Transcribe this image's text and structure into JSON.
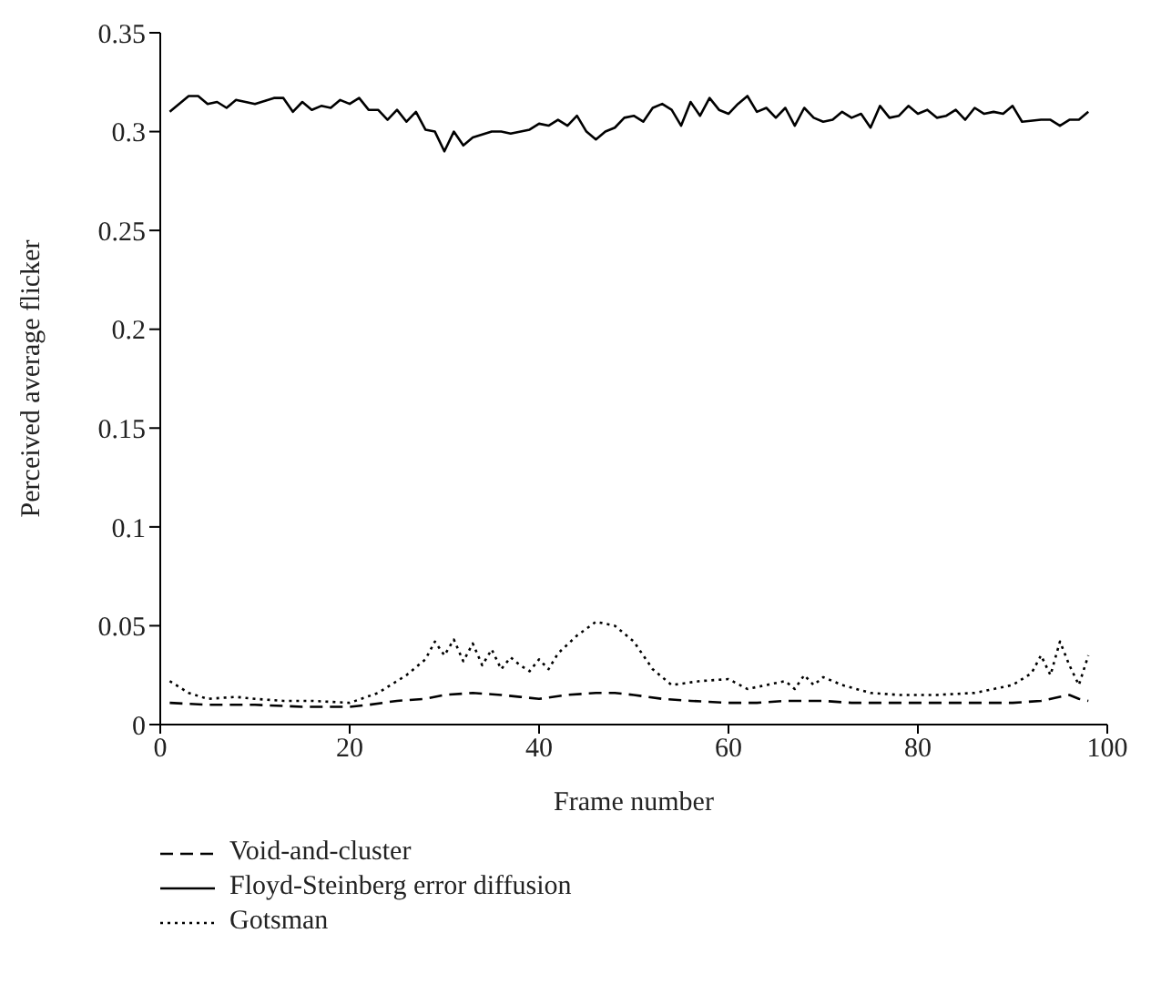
{
  "chart_data": {
    "type": "line",
    "xlabel": "Frame number",
    "ylabel": "Perceived average flicker",
    "xlim": [
      0,
      100
    ],
    "xticks": [
      0,
      20,
      40,
      60,
      80,
      100
    ],
    "ylim": [
      0,
      0.35
    ],
    "yticks": [
      0,
      0.05,
      0.1,
      0.15,
      0.2,
      0.25,
      0.3,
      0.35
    ],
    "legend": "bottom left",
    "marker": "none",
    "series": [
      {
        "name": "Void-and-cluster",
        "color": "#000000",
        "line_style": "dashed",
        "x": [
          1,
          5,
          10,
          15,
          18,
          20,
          22,
          25,
          28,
          30,
          33,
          36,
          38,
          40,
          43,
          46,
          48,
          50,
          53,
          56,
          60,
          63,
          66,
          70,
          73,
          76,
          80,
          85,
          90,
          93,
          95,
          96,
          97,
          98
        ],
        "values": [
          0.011,
          0.01,
          0.01,
          0.009,
          0.009,
          0.009,
          0.01,
          0.012,
          0.013,
          0.015,
          0.016,
          0.015,
          0.014,
          0.013,
          0.015,
          0.016,
          0.016,
          0.015,
          0.013,
          0.012,
          0.011,
          0.011,
          0.012,
          0.012,
          0.011,
          0.011,
          0.011,
          0.011,
          0.011,
          0.012,
          0.014,
          0.015,
          0.013,
          0.012
        ]
      },
      {
        "name": "Floyd-Steinberg error diffusion",
        "color": "#000000",
        "line_style": "solid",
        "x": [
          1,
          3,
          4,
          5,
          6,
          7,
          8,
          10,
          12,
          13,
          14,
          15,
          16,
          17,
          18,
          19,
          20,
          21,
          22,
          23,
          24,
          25,
          26,
          27,
          28,
          29,
          30,
          31,
          32,
          33,
          35,
          36,
          37,
          39,
          40,
          41,
          42,
          43,
          44,
          45,
          46,
          47,
          48,
          49,
          50,
          51,
          52,
          53,
          54,
          55,
          56,
          57,
          58,
          59,
          60,
          61,
          62,
          63,
          64,
          65,
          66,
          67,
          68,
          69,
          70,
          71,
          72,
          73,
          74,
          75,
          76,
          77,
          78,
          79,
          80,
          81,
          82,
          83,
          84,
          85,
          86,
          87,
          88,
          89,
          90,
          91,
          93,
          94,
          95,
          96,
          97,
          98
        ],
        "values": [
          0.31,
          0.318,
          0.318,
          0.314,
          0.315,
          0.312,
          0.316,
          0.314,
          0.317,
          0.317,
          0.31,
          0.315,
          0.311,
          0.313,
          0.312,
          0.316,
          0.314,
          0.317,
          0.311,
          0.311,
          0.306,
          0.311,
          0.305,
          0.31,
          0.301,
          0.3,
          0.29,
          0.3,
          0.293,
          0.297,
          0.3,
          0.3,
          0.299,
          0.301,
          0.304,
          0.303,
          0.306,
          0.303,
          0.308,
          0.3,
          0.296,
          0.3,
          0.302,
          0.307,
          0.308,
          0.305,
          0.312,
          0.314,
          0.311,
          0.303,
          0.315,
          0.308,
          0.317,
          0.311,
          0.309,
          0.314,
          0.318,
          0.31,
          0.312,
          0.307,
          0.312,
          0.303,
          0.312,
          0.307,
          0.305,
          0.306,
          0.31,
          0.307,
          0.309,
          0.302,
          0.313,
          0.307,
          0.308,
          0.313,
          0.309,
          0.311,
          0.307,
          0.308,
          0.311,
          0.306,
          0.312,
          0.309,
          0.31,
          0.309,
          0.313,
          0.305,
          0.306,
          0.306,
          0.303,
          0.306,
          0.306,
          0.31
        ]
      },
      {
        "name": "Gotsman",
        "color": "#000000",
        "line_style": "dotted",
        "x": [
          1,
          3,
          5,
          8,
          10,
          13,
          16,
          20,
          23,
          26,
          28,
          29,
          30,
          31,
          32,
          33,
          34,
          35,
          36,
          37,
          38,
          39,
          40,
          41,
          42,
          44,
          46,
          48,
          50,
          52,
          54,
          57,
          60,
          62,
          64,
          66,
          67,
          68,
          69,
          70,
          72,
          75,
          78,
          82,
          86,
          90,
          92,
          93,
          94,
          95,
          96,
          97,
          98
        ],
        "values": [
          0.022,
          0.016,
          0.013,
          0.014,
          0.013,
          0.012,
          0.012,
          0.011,
          0.016,
          0.025,
          0.033,
          0.042,
          0.035,
          0.043,
          0.032,
          0.041,
          0.03,
          0.038,
          0.028,
          0.034,
          0.03,
          0.027,
          0.033,
          0.028,
          0.036,
          0.045,
          0.052,
          0.05,
          0.042,
          0.028,
          0.02,
          0.022,
          0.023,
          0.018,
          0.02,
          0.022,
          0.018,
          0.025,
          0.02,
          0.024,
          0.02,
          0.016,
          0.015,
          0.015,
          0.016,
          0.02,
          0.026,
          0.035,
          0.025,
          0.042,
          0.03,
          0.02,
          0.035
        ]
      }
    ]
  }
}
